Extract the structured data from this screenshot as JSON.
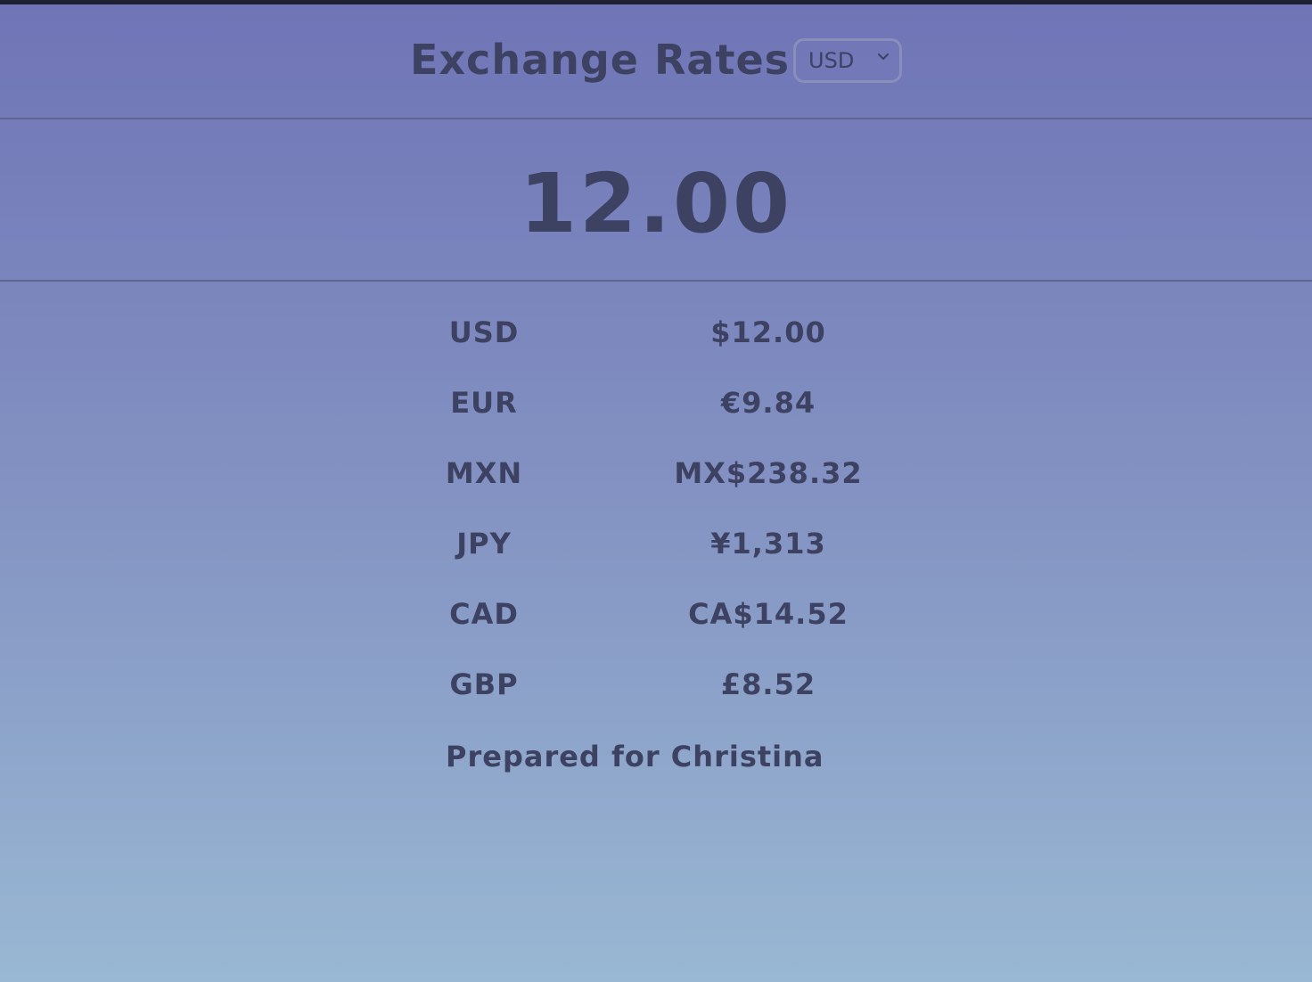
{
  "header": {
    "title": "Exchange Rates",
    "base_currency": {
      "selected": "USD",
      "options": [
        "USD"
      ]
    }
  },
  "amount": "12.00",
  "rates": [
    {
      "code": "USD",
      "value": "$12.00"
    },
    {
      "code": "EUR",
      "value": "€9.84"
    },
    {
      "code": "MXN",
      "value": "MX$238.32"
    },
    {
      "code": "JPY",
      "value": "¥1,313"
    },
    {
      "code": "CAD",
      "value": "CA$14.52"
    },
    {
      "code": "GBP",
      "value": "£8.52"
    }
  ],
  "footer": {
    "note": "Prepared for Christina"
  },
  "colors": {
    "text": "#3d4162",
    "gradient_top": "#6f74b6",
    "gradient_bottom": "#99b8d3",
    "divider": "#5f6590",
    "select_border": "#8a8fb9"
  }
}
